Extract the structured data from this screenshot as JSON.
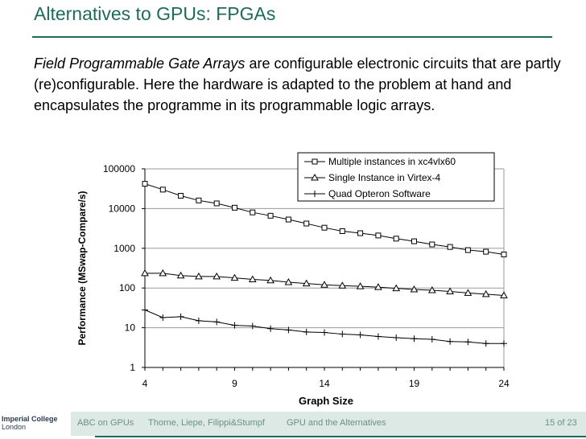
{
  "slide": {
    "title": "Alternatives to GPUs: FPGAs",
    "text_italic": "Field Programmable Gate Arrays",
    "text_rest": " are configurable electronic circuits that are partly (re)configurable. Here the hardware is adapted to the problem at hand and encapsulates the programme in its programmable logic arrays."
  },
  "chart_data": {
    "type": "line",
    "xlabel": "Graph Size",
    "ylabel": "Performance (MSwap-Compare/s)",
    "yscale": "log",
    "xlim": [
      4,
      24
    ],
    "ylim": [
      1,
      100000
    ],
    "xticks": [
      "4",
      "9",
      "14",
      "19",
      "24"
    ],
    "yticks": [
      "1",
      "10",
      "100",
      "1000",
      "10000",
      "100000"
    ],
    "grid": "horizontal",
    "legend_position": "top-right",
    "x": [
      4,
      5,
      6,
      7,
      8,
      9,
      10,
      11,
      12,
      13,
      14,
      15,
      16,
      17,
      18,
      19,
      20,
      21,
      22,
      23,
      24
    ],
    "series": [
      {
        "name": "Multiple instances in xc4vlx60",
        "marker": "square",
        "values": [
          42000,
          30000,
          21000,
          16000,
          13500,
          10500,
          8000,
          6600,
          5300,
          4200,
          3300,
          2700,
          2400,
          2100,
          1750,
          1500,
          1250,
          1080,
          900,
          820,
          700
        ]
      },
      {
        "name": "Single Instance in Virtex-4",
        "marker": "triangle",
        "values": [
          235,
          235,
          205,
          195,
          195,
          180,
          165,
          155,
          140,
          130,
          120,
          115,
          110,
          105,
          98,
          92,
          88,
          82,
          75,
          70,
          65
        ]
      },
      {
        "name": "Quad Opteron Software",
        "marker": "plus",
        "values": [
          28,
          18,
          19,
          15,
          14,
          11.5,
          11,
          9.5,
          8.8,
          7.8,
          7.6,
          6.9,
          6.6,
          6,
          5.6,
          5.3,
          5.1,
          4.5,
          4.4,
          4,
          4
        ]
      }
    ]
  },
  "footer": {
    "logo_line1": "Imperial College",
    "logo_line2": "London",
    "short_title": "ABC on GPUs",
    "authors": "Thorne, Liepe, Filippi&Stumpf",
    "section": "GPU and the Alternatives",
    "page": "15 of 23"
  }
}
